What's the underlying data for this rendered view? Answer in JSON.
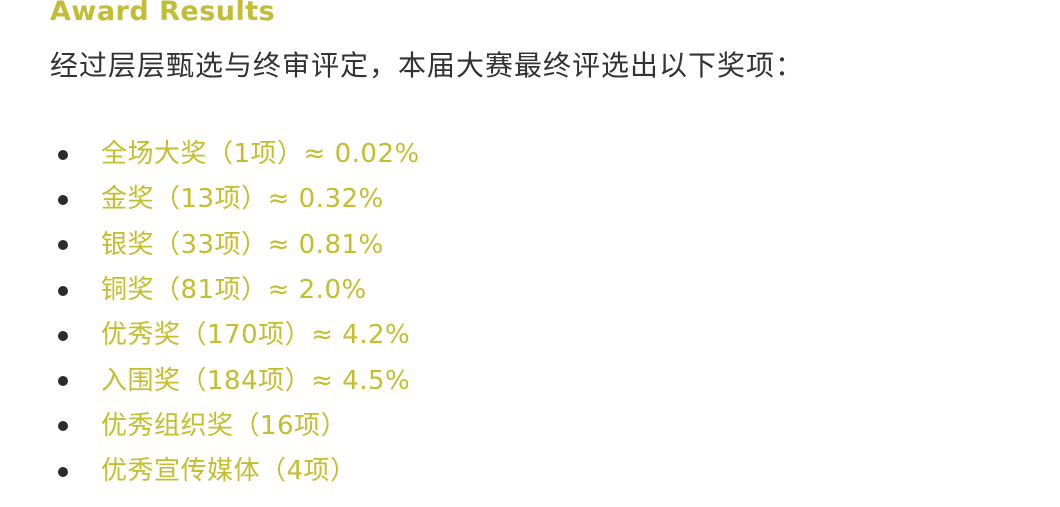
{
  "title": "Award Results",
  "intro": "经过层层甄选与终审评定，本届大赛最终评选出以下奖项：",
  "colors": {
    "accent": "#c4bd2e",
    "body_text": "#333333",
    "bullet": "#2b2b2b"
  },
  "awards": [
    "全场大奖（1项）≈ 0.02%",
    "金奖（13项）≈ 0.32%",
    "银奖（33项）≈ 0.81%",
    "铜奖（81项）≈ 2.0%",
    "优秀奖（170项）≈ 4.2%",
    "入围奖（184项）≈ 4.5%",
    "优秀组织奖（16项）",
    "优秀宣传媒体（4项）"
  ]
}
